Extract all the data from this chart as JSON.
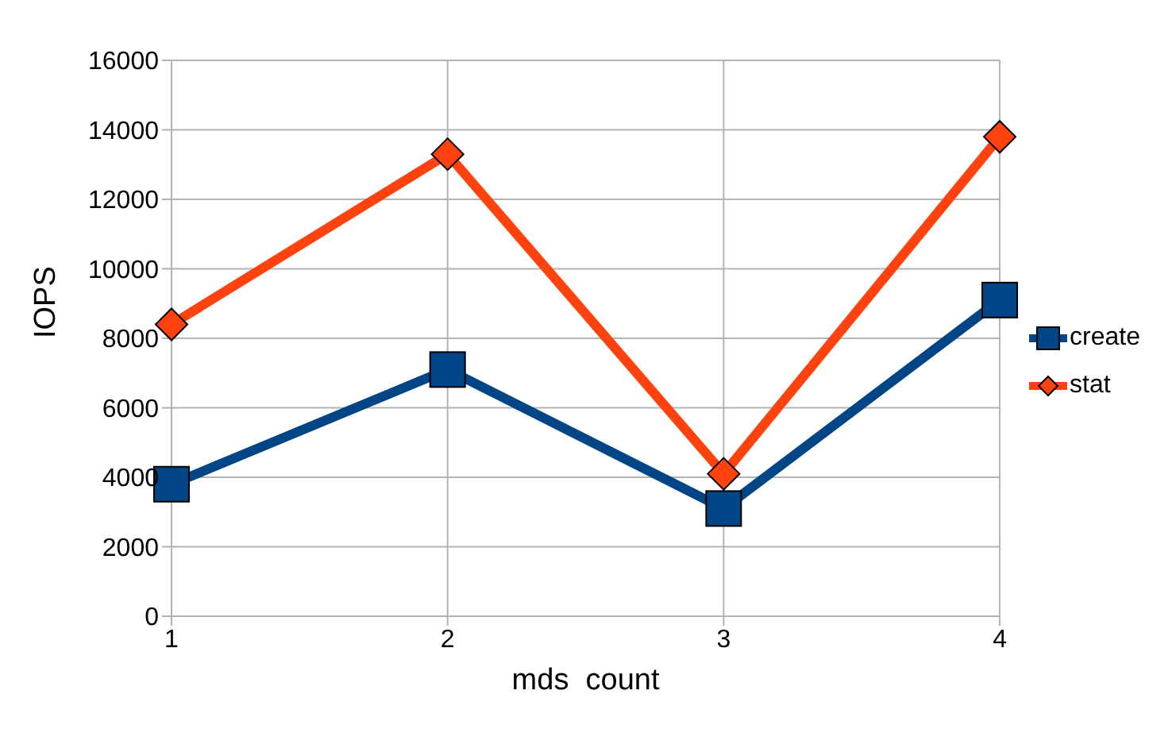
{
  "chart_data": {
    "type": "line",
    "xlabel": "mds  count",
    "ylabel": "IOPS",
    "x": [
      1,
      2,
      3,
      4
    ],
    "xlim": [
      1,
      4
    ],
    "xticks": [
      1,
      2,
      3,
      4
    ],
    "ylim": [
      0,
      16000
    ],
    "yticks": [
      0,
      2000,
      4000,
      6000,
      8000,
      10000,
      12000,
      14000,
      16000
    ],
    "grid": true,
    "legend": "right",
    "series": [
      {
        "name": "create",
        "color": "#004586",
        "values": [
          3800,
          7100,
          3100,
          9100
        ],
        "marker": "square"
      },
      {
        "name": "stat",
        "color": "#ff420e",
        "values": [
          8400,
          13300,
          4100,
          13800
        ],
        "marker": "diamond"
      }
    ]
  }
}
